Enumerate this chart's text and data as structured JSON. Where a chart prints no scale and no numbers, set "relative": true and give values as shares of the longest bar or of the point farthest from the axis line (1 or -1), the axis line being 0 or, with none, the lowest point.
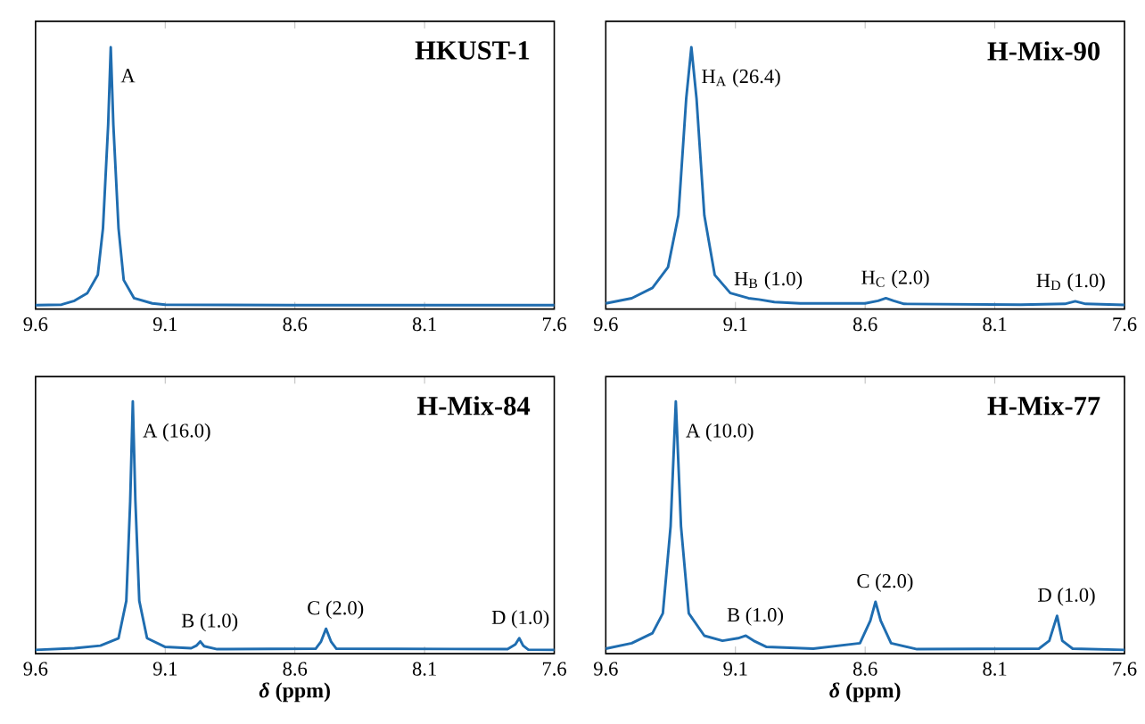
{
  "chart_data": [
    {
      "type": "line",
      "title": "HKUST-1",
      "relative": true,
      "color": "#1f6db0",
      "xlim": [
        9.6,
        7.6
      ],
      "xticks": [
        9.6,
        9.1,
        8.6,
        8.1,
        7.6
      ],
      "tick_labels": "x",
      "x": [
        9.6,
        9.5,
        9.45,
        9.4,
        9.36,
        9.34,
        9.32,
        9.31,
        9.3,
        9.28,
        9.26,
        9.22,
        9.15,
        9.1,
        8.6,
        8.1,
        7.6
      ],
      "values": [
        0.003,
        0.005,
        0.02,
        0.05,
        0.12,
        0.3,
        0.7,
        1.0,
        0.7,
        0.3,
        0.1,
        0.03,
        0.01,
        0.005,
        0.003,
        0.003,
        0.003
      ],
      "annotations": [
        {
          "text": "A",
          "x": 9.31,
          "y": 1.0
        }
      ]
    },
    {
      "type": "line",
      "title": "H-Mix-90",
      "relative": true,
      "color": "#1f6db0",
      "xlim": [
        9.6,
        7.6
      ],
      "xticks": [
        9.6,
        9.1,
        8.6,
        8.1,
        7.6
      ],
      "tick_labels": "x",
      "x": [
        9.6,
        9.5,
        9.42,
        9.36,
        9.32,
        9.29,
        9.27,
        9.25,
        9.22,
        9.18,
        9.12,
        9.05,
        9.01,
        8.95,
        8.85,
        8.6,
        8.55,
        8.52,
        8.49,
        8.45,
        8.0,
        7.83,
        7.79,
        7.75,
        7.6
      ],
      "values": [
        0.01,
        0.03,
        0.07,
        0.15,
        0.35,
        0.8,
        1.0,
        0.8,
        0.35,
        0.12,
        0.05,
        0.03,
        0.025,
        0.015,
        0.01,
        0.01,
        0.02,
        0.03,
        0.02,
        0.008,
        0.005,
        0.008,
        0.018,
        0.008,
        0.004
      ],
      "annotations": [
        {
          "text": "H$_{A}$ (26.4)",
          "x": 9.27,
          "y": 1.0
        },
        {
          "text": "H$_{B}$ (1.0)",
          "x": 9.01,
          "y": 0.025
        },
        {
          "text": "H$_{C}$ (2.0)",
          "x": 8.52,
          "y": 0.03
        },
        {
          "text": "H$_{D}$ (1.0)",
          "x": 7.79,
          "y": 0.018
        }
      ]
    },
    {
      "type": "line",
      "title": "H-Mix-84",
      "relative": true,
      "color": "#1f6db0",
      "xlim": [
        9.6,
        7.6
      ],
      "xticks": [
        9.6,
        9.1,
        8.6,
        8.1,
        7.6
      ],
      "tick_labels": "x",
      "xlabel": "*δ* (ppm)",
      "x": [
        9.6,
        9.45,
        9.35,
        9.28,
        9.25,
        9.235,
        9.225,
        9.215,
        9.2,
        9.17,
        9.1,
        9.0,
        8.98,
        8.965,
        8.95,
        8.9,
        8.52,
        8.5,
        8.48,
        8.46,
        8.44,
        7.78,
        7.75,
        7.735,
        7.72,
        7.7,
        7.6
      ],
      "values": [
        0.003,
        0.01,
        0.02,
        0.05,
        0.2,
        0.6,
        1.0,
        0.6,
        0.2,
        0.05,
        0.015,
        0.01,
        0.02,
        0.037,
        0.018,
        0.006,
        0.008,
        0.035,
        0.088,
        0.035,
        0.008,
        0.006,
        0.025,
        0.05,
        0.02,
        0.004,
        0.003
      ],
      "annotations": [
        {
          "text": "A (16.0)",
          "x": 9.225,
          "y": 1.0
        },
        {
          "text": "B (1.0)",
          "x": 8.965,
          "y": 0.037
        },
        {
          "text": "C (2.0)",
          "x": 8.48,
          "y": 0.088
        },
        {
          "text": "D (1.0)",
          "x": 7.735,
          "y": 0.05
        }
      ]
    },
    {
      "type": "line",
      "title": "H-Mix-77",
      "relative": true,
      "color": "#1f6db0",
      "xlim": [
        9.6,
        7.6
      ],
      "xticks": [
        9.6,
        9.1,
        8.6,
        8.1,
        7.6
      ],
      "tick_labels": "x",
      "xlabel": "*δ* (ppm)",
      "x": [
        9.6,
        9.5,
        9.42,
        9.38,
        9.35,
        9.33,
        9.31,
        9.28,
        9.22,
        9.15,
        9.09,
        9.06,
        9.03,
        8.98,
        8.8,
        8.62,
        8.58,
        8.56,
        8.54,
        8.5,
        8.4,
        7.93,
        7.89,
        7.86,
        7.84,
        7.8,
        7.6
      ],
      "values": [
        0.008,
        0.03,
        0.07,
        0.15,
        0.5,
        1.0,
        0.5,
        0.15,
        0.06,
        0.04,
        0.05,
        0.06,
        0.04,
        0.015,
        0.008,
        0.03,
        0.12,
        0.196,
        0.12,
        0.03,
        0.006,
        0.008,
        0.04,
        0.14,
        0.04,
        0.008,
        0.003
      ],
      "annotations": [
        {
          "text": "A (10.0)",
          "x": 9.33,
          "y": 1.0
        },
        {
          "text": "B (1.0)",
          "x": 9.06,
          "y": 0.06
        },
        {
          "text": "C (2.0)",
          "x": 8.56,
          "y": 0.196
        },
        {
          "text": "D (1.0)",
          "x": 7.86,
          "y": 0.14
        }
      ]
    }
  ]
}
